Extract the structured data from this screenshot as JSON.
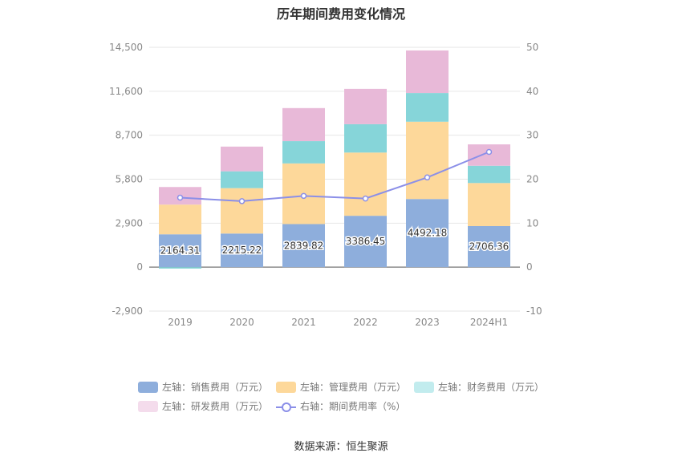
{
  "chart_data": {
    "type": "bar",
    "stacked": true,
    "title": "历年期间费用变化情况",
    "categories": [
      "2019",
      "2020",
      "2021",
      "2022",
      "2023",
      "2024H1"
    ],
    "left_axis": {
      "ticks": [
        "14,500",
        "11,600",
        "8,700",
        "5,800",
        "2,900",
        "0",
        "-2,900"
      ],
      "range": [
        -2900,
        14500
      ]
    },
    "right_axis": {
      "ticks": [
        "50",
        "40",
        "30",
        "20",
        "10",
        "0",
        "-10"
      ],
      "range": [
        -10,
        50
      ]
    },
    "series": [
      {
        "name": "左轴：销售费用（万元）",
        "axis": "left",
        "color": "#8eaedc",
        "values": [
          2164.31,
          2215.22,
          2839.82,
          3386.45,
          4492.18,
          2706.36
        ],
        "labels": [
          "2164.31",
          "2215.22",
          "2839.82",
          "3386.45",
          "4492.18",
          "2706.36"
        ]
      },
      {
        "name": "左轴：管理费用（万元）",
        "axis": "left",
        "color": "#fdd89a",
        "values": [
          1960,
          2995,
          4000,
          4170,
          5100,
          2840
        ]
      },
      {
        "name": "左轴：财务费用（万元）",
        "axis": "left",
        "color": "#86d5d9",
        "values": [
          -100,
          1110,
          1470,
          1870,
          1890,
          1140
        ]
      },
      {
        "name": "左轴：研发费用（万元）",
        "axis": "left",
        "color": "#e8b9d8",
        "values": [
          1160,
          1630,
          2180,
          2330,
          2810,
          1410
        ]
      },
      {
        "name": "右轴：期间费用率（%）",
        "axis": "right",
        "type": "line",
        "color": "#8b8fe8",
        "values": [
          15.8,
          15.0,
          16.2,
          15.6,
          20.4,
          26.2
        ]
      }
    ]
  },
  "source": "数据来源：恒生聚源"
}
